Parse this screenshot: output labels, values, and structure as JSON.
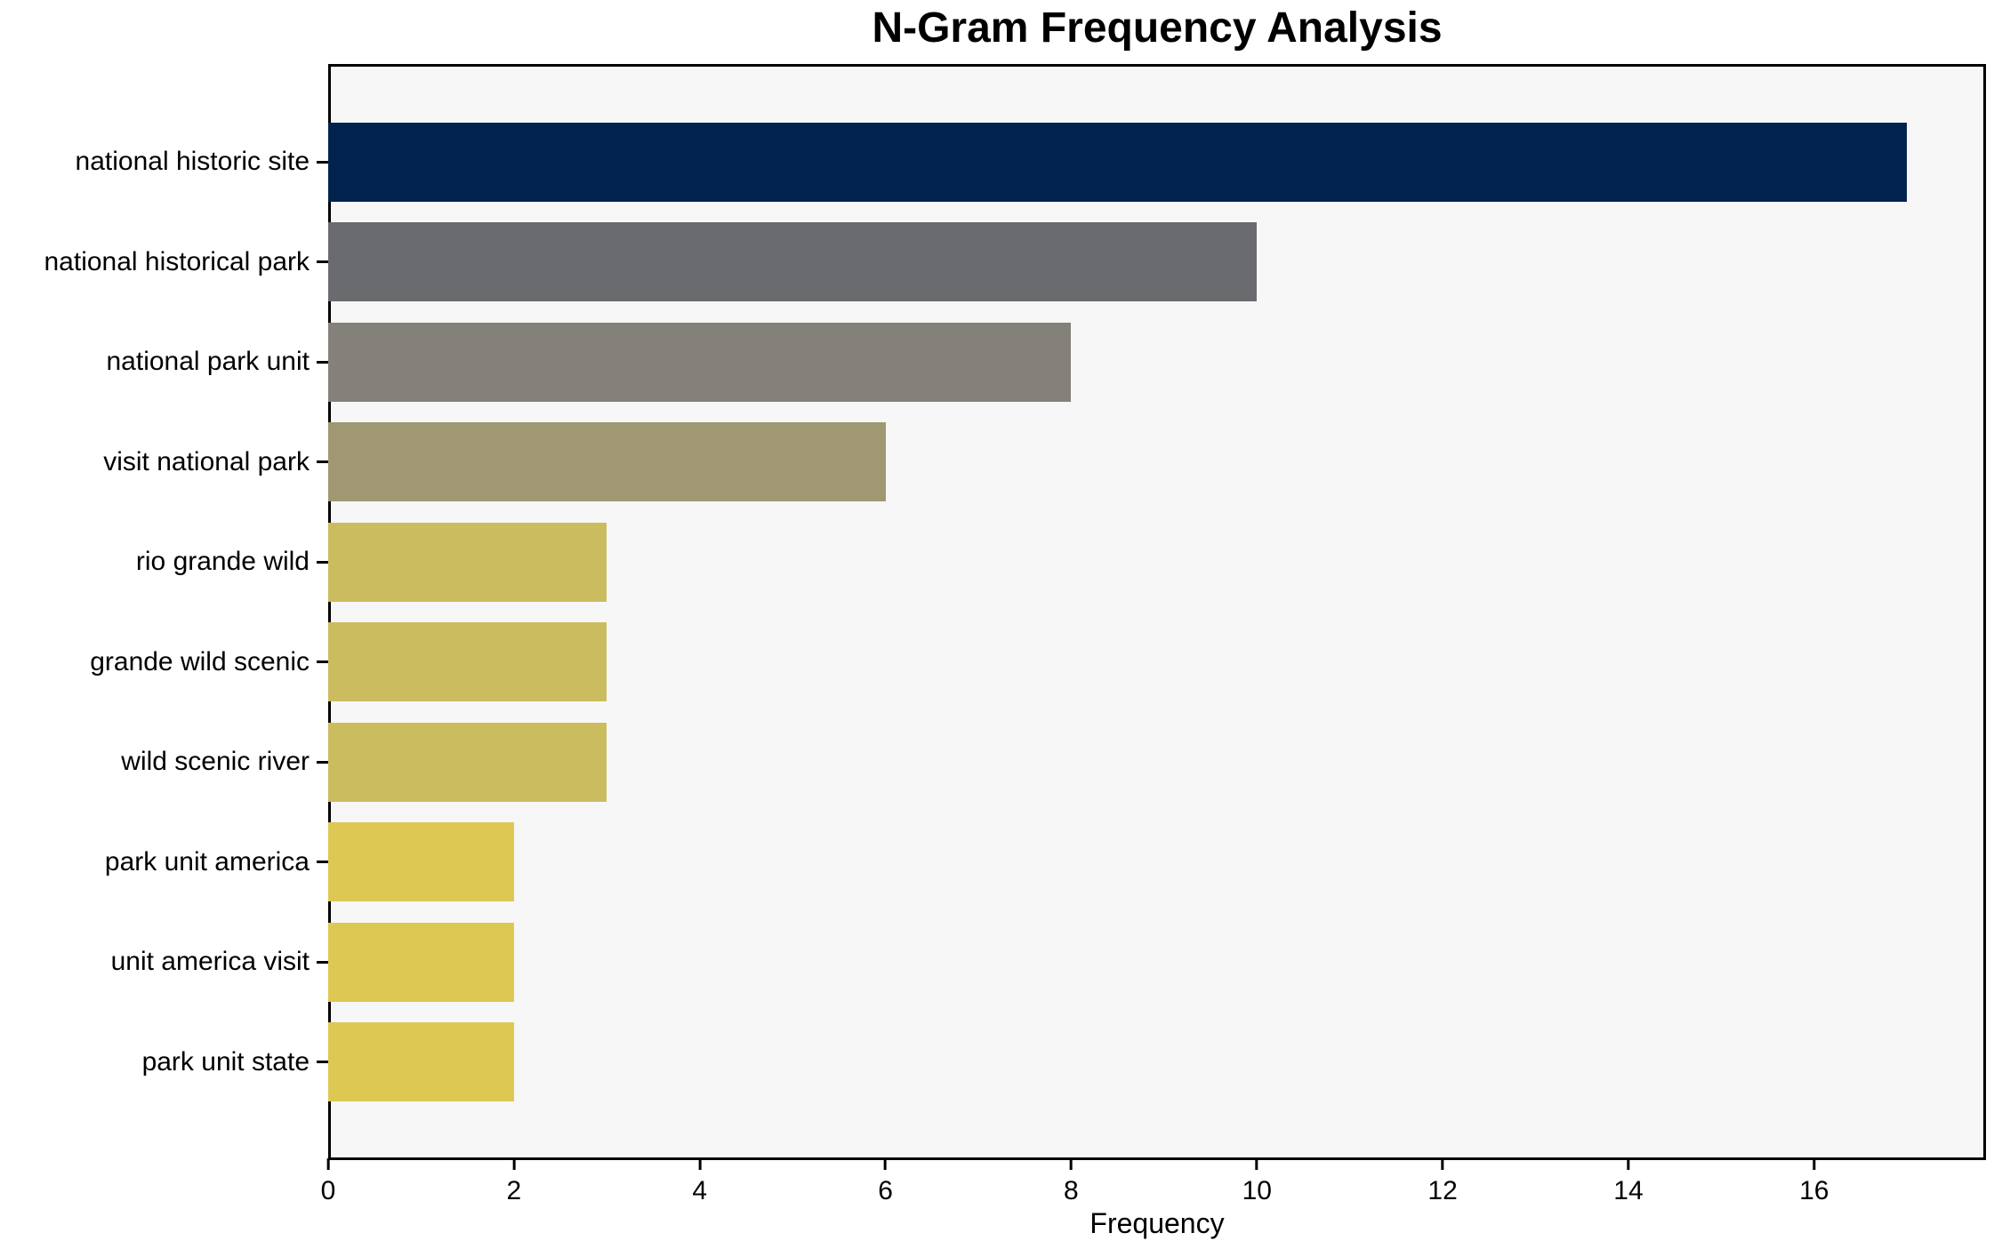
{
  "chart_data": {
    "type": "bar",
    "orientation": "horizontal",
    "title": "N-Gram Frequency Analysis",
    "xlabel": "Frequency",
    "ylabel": "",
    "categories": [
      "national historic site",
      "national historical park",
      "national park unit",
      "visit national park",
      "rio grande wild",
      "grande wild scenic",
      "wild scenic river",
      "park unit america",
      "unit america visit",
      "park unit state"
    ],
    "values": [
      17,
      10,
      8,
      6,
      3,
      3,
      3,
      2,
      2,
      2
    ],
    "bar_colors": [
      "#02234d",
      "#6a6b6f",
      "#84817a",
      "#a09873",
      "#ccbc60",
      "#ccbc60",
      "#ccbc60",
      "#ddc854",
      "#ddc854",
      "#ddc854"
    ],
    "xticks": [
      0,
      2,
      4,
      6,
      8,
      10,
      12,
      14,
      16
    ],
    "xlim": [
      0,
      17.85
    ],
    "grid": false,
    "legend": null,
    "plot_background": "#f7f7f7",
    "figure_background": "#ffffff",
    "spine_color": "#000000"
  }
}
